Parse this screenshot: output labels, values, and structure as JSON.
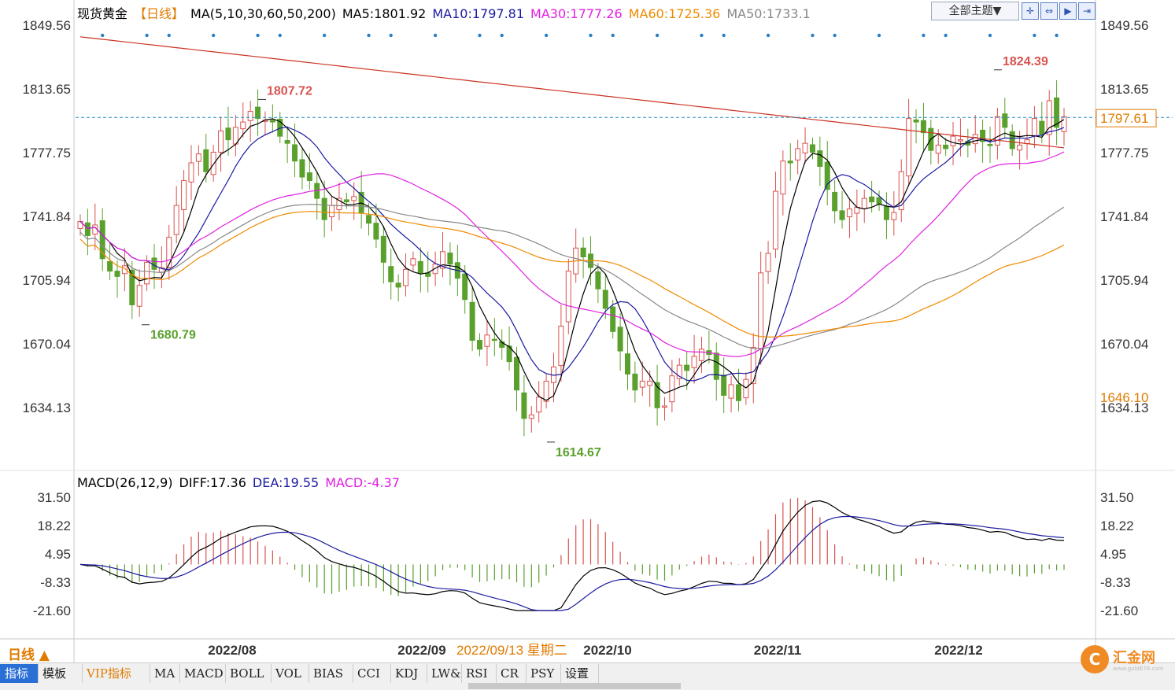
{
  "header": {
    "instrument": "现货黄金",
    "period_tag": "【日线】",
    "ma_label": "MA(5,10,30,60,50,200)",
    "ma5": "MA5:1801.92",
    "ma10": "MA10:1797.81",
    "ma30": "MA30:1777.26",
    "ma60": "MA60:1725.36",
    "ma50": "MA50:1733.1"
  },
  "macd_header": {
    "label": "MACD(26,12,9)",
    "diff": "DIFF:17.36",
    "dea": "DEA:19.55",
    "macd": "MACD:-4.37"
  },
  "toolbar": {
    "theme_label": "全部主题▼",
    "icons": [
      "zoom-in-icon",
      "zoom-out-icon",
      "play-icon",
      "forward-icon"
    ]
  },
  "period_label": "日线 ▲",
  "tabs": [
    "指标",
    "模板",
    "VIP指标",
    "MA",
    "MACD",
    "BOLL",
    "VOL",
    "BIAS",
    "CCI",
    "KDJ",
    "LW&",
    "RSI",
    "CR",
    "PSY",
    "设置"
  ],
  "logo": {
    "mark": "C",
    "name": "汇金网",
    "url": "www.gold678.com"
  },
  "colors": {
    "up": "#d9534f",
    "down": "#5aa02c",
    "ma5": "#000000",
    "ma10": "#1a1aa0",
    "ma30": "#e020e0",
    "ma60": "#f08a00",
    "ma50": "#888888",
    "ma200": "#cc3322",
    "accent": "#e07b00"
  },
  "chart_data": {
    "type": "candlestick",
    "price_axis": {
      "ticks": [
        "1849.56",
        "1813.65",
        "1777.75",
        "1741.84",
        "1705.94",
        "1670.04",
        "1634.13"
      ],
      "range": [
        1634.13,
        1849.56
      ]
    },
    "macd_axis": {
      "ticks": [
        "31.50",
        "18.22",
        "4.95",
        "-8.33",
        "-21.60"
      ],
      "range": [
        -21.6,
        31.5
      ]
    },
    "x_labels": [
      "2022/08",
      "2022/09",
      "2022/10",
      "2022/11",
      "2022/12"
    ],
    "cursor_date": "2022/09/13 星期二",
    "annotations": [
      {
        "label": "1807.72",
        "value": 1807.72,
        "kind": "high"
      },
      {
        "label": "1680.79",
        "value": 1680.79,
        "kind": "low"
      },
      {
        "label": "1614.67",
        "value": 1614.67,
        "kind": "low"
      },
      {
        "label": "1824.39",
        "value": 1824.39,
        "kind": "high"
      }
    ],
    "current_price": "1797.61",
    "secondary_price": "1646.10",
    "closes": [
      1739,
      1731,
      1737,
      1718,
      1711,
      1708,
      1714,
      1692,
      1703,
      1716,
      1712,
      1713,
      1730,
      1748,
      1762,
      1772,
      1777,
      1767,
      1778,
      1790,
      1785,
      1792,
      1795,
      1801,
      1797,
      1796,
      1795,
      1787,
      1783,
      1773,
      1764,
      1762,
      1752,
      1740,
      1748,
      1752,
      1750,
      1753,
      1744,
      1738,
      1729,
      1716,
      1705,
      1702,
      1712,
      1718,
      1710,
      1708,
      1715,
      1722,
      1715,
      1707,
      1695,
      1672,
      1667,
      1675,
      1672,
      1668,
      1660,
      1644,
      1628,
      1630,
      1640,
      1649,
      1657,
      1680,
      1711,
      1724,
      1719,
      1713,
      1701,
      1690,
      1677,
      1666,
      1653,
      1644,
      1649,
      1649,
      1634,
      1635,
      1652,
      1658,
      1655,
      1663,
      1667,
      1664,
      1650,
      1641,
      1647,
      1638,
      1650,
      1668,
      1710,
      1721,
      1756,
      1773,
      1772,
      1780,
      1783,
      1778,
      1770,
      1757,
      1745,
      1740,
      1746,
      1747,
      1752,
      1750,
      1749,
      1740,
      1744,
      1767,
      1797,
      1795,
      1789,
      1779,
      1782,
      1780,
      1787,
      1785,
      1782,
      1788,
      1784,
      1782,
      1798,
      1792,
      1780,
      1782,
      1785,
      1797,
      1788,
      1807,
      1792,
      1798
    ],
    "series": [
      {
        "name": "MA5",
        "value": 1801.92
      },
      {
        "name": "MA10",
        "value": 1797.81
      },
      {
        "name": "MA30",
        "value": 1777.26
      },
      {
        "name": "MA60",
        "value": 1725.36
      },
      {
        "name": "MA50",
        "value": 1733.1
      },
      {
        "name": "DIFF",
        "value": 17.36
      },
      {
        "name": "DEA",
        "value": 19.55
      },
      {
        "name": "MACD",
        "value": -4.37
      }
    ],
    "grid": false
  }
}
